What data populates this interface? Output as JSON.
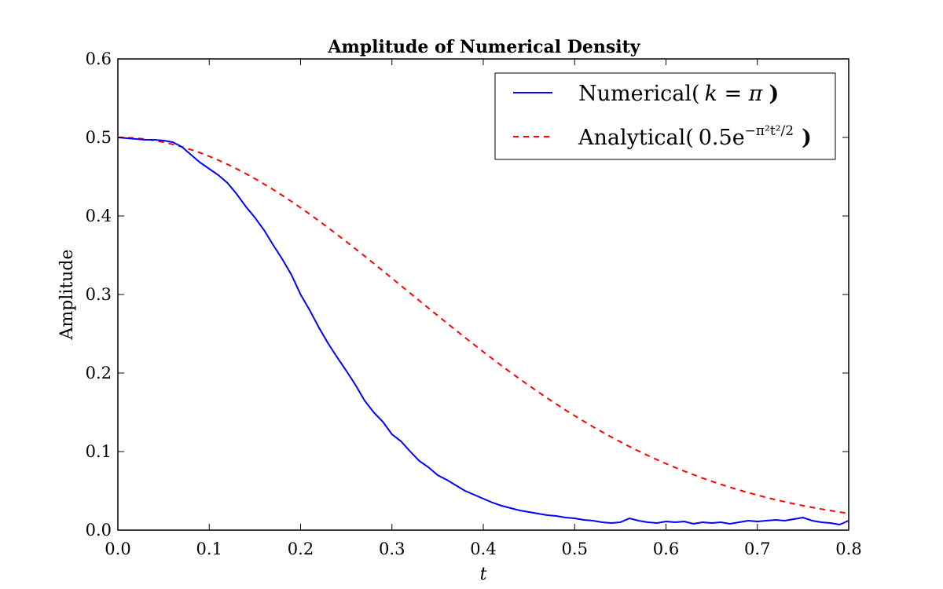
{
  "chart_data": {
    "type": "line",
    "title": "Amplitude of Numerical Density",
    "xlabel": "t",
    "ylabel": "Amplitude",
    "xlim": [
      0.0,
      0.8
    ],
    "ylim": [
      0.0,
      0.6
    ],
    "xticks": [
      "0.0",
      "0.1",
      "0.2",
      "0.3",
      "0.4",
      "0.5",
      "0.6",
      "0.7",
      "0.8"
    ],
    "yticks": [
      "0.0",
      "0.1",
      "0.2",
      "0.3",
      "0.4",
      "0.5",
      "0.6"
    ],
    "grid": false,
    "legend_position": "top-right",
    "series": [
      {
        "name": "Numerical( k = π )",
        "name_parts": {
          "prefix": "Numerical(",
          "math": "k = π",
          "suffix": ")"
        },
        "color": "#0000ff",
        "style": "solid",
        "x": [
          0.0,
          0.01,
          0.02,
          0.03,
          0.04,
          0.05,
          0.06,
          0.07,
          0.08,
          0.09,
          0.1,
          0.11,
          0.12,
          0.13,
          0.14,
          0.15,
          0.16,
          0.17,
          0.18,
          0.19,
          0.2,
          0.21,
          0.22,
          0.23,
          0.24,
          0.25,
          0.26,
          0.27,
          0.28,
          0.29,
          0.3,
          0.31,
          0.32,
          0.33,
          0.34,
          0.35,
          0.36,
          0.37,
          0.38,
          0.39,
          0.4,
          0.41,
          0.42,
          0.43,
          0.44,
          0.45,
          0.46,
          0.47,
          0.48,
          0.49,
          0.5,
          0.51,
          0.52,
          0.53,
          0.54,
          0.55,
          0.56,
          0.57,
          0.58,
          0.59,
          0.6,
          0.61,
          0.62,
          0.63,
          0.64,
          0.65,
          0.66,
          0.67,
          0.68,
          0.69,
          0.7,
          0.71,
          0.72,
          0.73,
          0.74,
          0.75,
          0.76,
          0.77,
          0.78,
          0.79,
          0.8
        ],
        "values": [
          0.5,
          0.499,
          0.498,
          0.497,
          0.497,
          0.496,
          0.494,
          0.488,
          0.478,
          0.468,
          0.46,
          0.452,
          0.442,
          0.428,
          0.412,
          0.398,
          0.382,
          0.363,
          0.345,
          0.325,
          0.3,
          0.28,
          0.258,
          0.238,
          0.22,
          0.203,
          0.185,
          0.165,
          0.15,
          0.138,
          0.122,
          0.113,
          0.1,
          0.088,
          0.08,
          0.07,
          0.064,
          0.057,
          0.05,
          0.045,
          0.04,
          0.035,
          0.031,
          0.028,
          0.025,
          0.023,
          0.021,
          0.019,
          0.018,
          0.016,
          0.015,
          0.013,
          0.012,
          0.01,
          0.009,
          0.01,
          0.015,
          0.012,
          0.01,
          0.009,
          0.011,
          0.01,
          0.011,
          0.008,
          0.01,
          0.009,
          0.01,
          0.008,
          0.01,
          0.012,
          0.011,
          0.012,
          0.013,
          0.012,
          0.014,
          0.016,
          0.012,
          0.01,
          0.009,
          0.007,
          0.012
        ]
      },
      {
        "name": "Analytical( 0.5e^{-π²t²/2} )",
        "name_parts": {
          "prefix": "Analytical(",
          "coef": "0.5e",
          "exponent": "−π²t²/2",
          "suffix": ")"
        },
        "color": "#ff0000",
        "style": "dashed",
        "function": "0.5*exp(-pi^2*t^2/2)"
      }
    ]
  }
}
